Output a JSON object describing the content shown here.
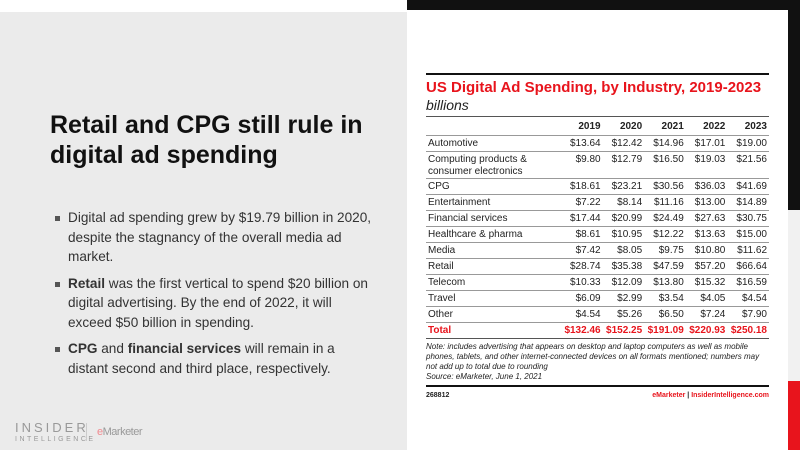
{
  "slide": {
    "title": "Retail and CPG still rule in digital ad spending",
    "bullets": [
      [
        {
          "t": "Digital ad spending grew by $19.79 billion in 2020, despite the stagnancy of the overall media ad market.",
          "b": false
        }
      ],
      [
        {
          "t": "Retail",
          "b": true
        },
        {
          "t": " was the first vertical to spend $20 billion on digital advertising. By the end of 2022, it will exceed $50 billion in spending.",
          "b": false
        }
      ],
      [
        {
          "t": "CPG",
          "b": true
        },
        {
          "t": " and ",
          "b": false
        },
        {
          "t": "financial services",
          "b": true
        },
        {
          "t": " will remain in a distant second and third place, respectively.",
          "b": false
        }
      ]
    ],
    "logo": {
      "line1": "INSIDER",
      "line2": "INTELLIGENCE",
      "emarketer_e": "e",
      "emarketer_rest": "Marketer"
    }
  },
  "chart_data": {
    "type": "table",
    "title": "US Digital Ad Spending, by Industry, 2019-2023",
    "subtitle": "billions",
    "columns": [
      "2019",
      "2020",
      "2021",
      "2022",
      "2023"
    ],
    "rows": [
      {
        "name": "Automotive",
        "values": [
          "$13.64",
          "$12.42",
          "$14.96",
          "$17.01",
          "$19.00"
        ]
      },
      {
        "name": "Computing products & consumer electronics",
        "values": [
          "$9.80",
          "$12.79",
          "$16.50",
          "$19.03",
          "$21.56"
        ]
      },
      {
        "name": "CPG",
        "values": [
          "$18.61",
          "$23.21",
          "$30.56",
          "$36.03",
          "$41.69"
        ]
      },
      {
        "name": "Entertainment",
        "values": [
          "$7.22",
          "$8.14",
          "$11.16",
          "$13.00",
          "$14.89"
        ]
      },
      {
        "name": "Financial services",
        "values": [
          "$17.44",
          "$20.99",
          "$24.49",
          "$27.63",
          "$30.75"
        ]
      },
      {
        "name": "Healthcare & pharma",
        "values": [
          "$8.61",
          "$10.95",
          "$12.22",
          "$13.63",
          "$15.00"
        ]
      },
      {
        "name": "Media",
        "values": [
          "$7.42",
          "$8.05",
          "$9.75",
          "$10.80",
          "$11.62"
        ]
      },
      {
        "name": "Retail",
        "values": [
          "$28.74",
          "$35.38",
          "$47.59",
          "$57.20",
          "$66.64"
        ]
      },
      {
        "name": "Telecom",
        "values": [
          "$10.33",
          "$12.09",
          "$13.80",
          "$15.32",
          "$16.59"
        ]
      },
      {
        "name": "Travel",
        "values": [
          "$6.09",
          "$2.99",
          "$3.54",
          "$4.05",
          "$4.54"
        ]
      },
      {
        "name": "Other",
        "values": [
          "$4.54",
          "$5.26",
          "$6.50",
          "$7.24",
          "$7.90"
        ]
      }
    ],
    "total": {
      "name": "Total",
      "values": [
        "$132.46",
        "$152.25",
        "$191.09",
        "$220.93",
        "$250.18"
      ]
    },
    "note": "Note: includes advertising that appears on desktop and laptop computers as well as mobile phones, tablets, and other internet-connected devices on all formats mentioned; numbers may not add up to total due to rounding",
    "source": "Source: eMarketer, June 1, 2021",
    "chart_id": "268812",
    "footer_brand": "eMarketer",
    "footer_sep": "|",
    "footer_site": "InsiderIntelligence.com",
    "accent": "#e8141c"
  }
}
